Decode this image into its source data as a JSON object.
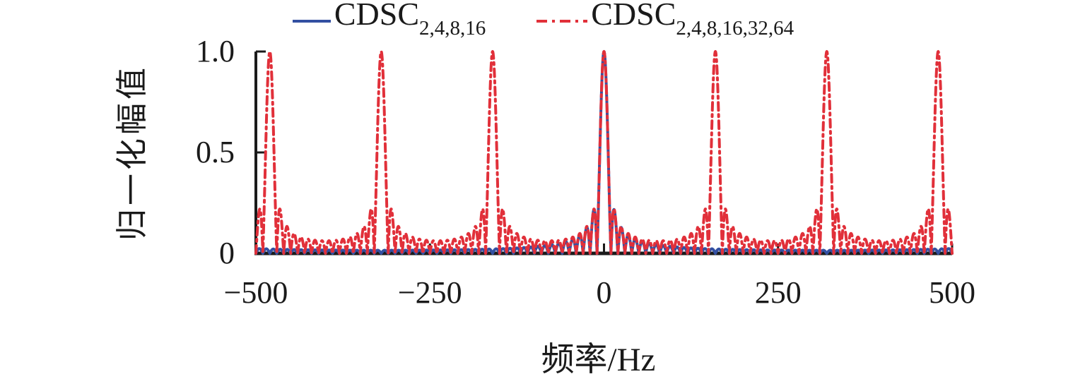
{
  "figure": {
    "background": "#ffffff",
    "text_color": "#1a1a1a",
    "axis_color": "#1b1b1b"
  },
  "legend": {
    "position": "top-center",
    "items": [
      {
        "base": "CDSC",
        "subscript": "2,4,8,16",
        "color": "#3350a2",
        "line_style": "solid"
      },
      {
        "base": "CDSC",
        "subscript": "2,4,8,16,32,64",
        "color": "#e1303a",
        "line_style": "dash-dot"
      }
    ]
  },
  "chart_data": {
    "type": "line",
    "title": "",
    "xlabel": "频率/Hz",
    "ylabel": "归一化幅值",
    "xlim": [
      -500,
      500
    ],
    "ylim": [
      0,
      1.0
    ],
    "x_tick_values": [
      -500,
      -250,
      0,
      250,
      500
    ],
    "x_tick_labels": [
      "−500",
      "−250",
      "0",
      "250",
      "500"
    ],
    "y_tick_values": [
      0,
      0.5,
      1.0
    ],
    "y_tick_labels": [
      "0",
      "0.5",
      "1.0"
    ],
    "grid": false,
    "legend_position": "top-center",
    "series": [
      {
        "name": "CDSC 2,4,8,16",
        "color": "#3350a2",
        "style": "solid",
        "line_width": 4,
        "model": {
          "kind": "dirichlet",
          "peak_spacing_hz": 640,
          "order": 64
        },
        "peaks_hz": [
          0
        ],
        "peak_amplitude": 1.0,
        "first_sidelobe_amplitude": 0.21,
        "sidelobe_zero_spacing_hz": 10,
        "far_ripple_amplitude": 0.02
      },
      {
        "name": "CDSC 2,4,8,16,32,64",
        "color": "#e1303a",
        "style": "dash-dot",
        "line_width": 4,
        "model": {
          "kind": "dirichlet",
          "peak_spacing_hz": 160,
          "order": 16
        },
        "peaks_hz": [
          -480,
          -320,
          -160,
          0,
          160,
          320,
          480
        ],
        "peak_amplitude": 1.0,
        "first_sidelobe_amplitude": 0.21,
        "sidelobe_zero_spacing_hz": 10,
        "mid_ripple_amplitude": 0.06
      }
    ]
  }
}
